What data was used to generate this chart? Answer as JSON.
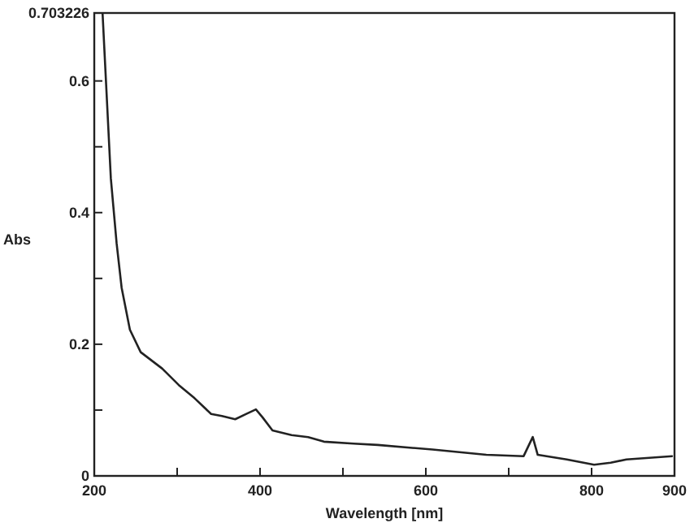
{
  "chart_data": {
    "type": "line",
    "xlabel": "Wavelength [nm]",
    "ylabel": "Abs",
    "xlim": [
      200,
      900
    ],
    "ylim": [
      0,
      0.703226
    ],
    "xticks": [
      200,
      {
        "value": 300,
        "label": null
      },
      400,
      {
        "value": 500,
        "label": null
      },
      600,
      {
        "value": 700,
        "label": null
      },
      800,
      900
    ],
    "yticks": [
      0,
      {
        "value": 0.1,
        "label": null
      },
      0.2,
      {
        "value": 0.3,
        "label": null
      },
      0.4,
      {
        "value": 0.5,
        "label": null
      },
      0.6,
      0.703226
    ],
    "grid": false,
    "marker": "none",
    "line_style": "solid",
    "series": [
      {
        "color": "#222222",
        "x": [
          210,
          220,
          227,
          233,
          243,
          256,
          282,
          302,
          321,
          341,
          354,
          370,
          383,
          395,
          403,
          415,
          438,
          458,
          477,
          513,
          542,
          608,
          673,
          718,
          729,
          735,
          770,
          803,
          823,
          842,
          897
        ],
        "values": [
          0.703,
          0.452,
          0.353,
          0.286,
          0.222,
          0.188,
          0.163,
          0.138,
          0.118,
          0.094,
          0.091,
          0.086,
          0.094,
          0.101,
          0.089,
          0.069,
          0.062,
          0.059,
          0.052,
          0.049,
          0.047,
          0.04,
          0.032,
          0.03,
          0.059,
          0.032,
          0.025,
          0.017,
          0.02,
          0.025,
          0.03
        ]
      }
    ]
  }
}
